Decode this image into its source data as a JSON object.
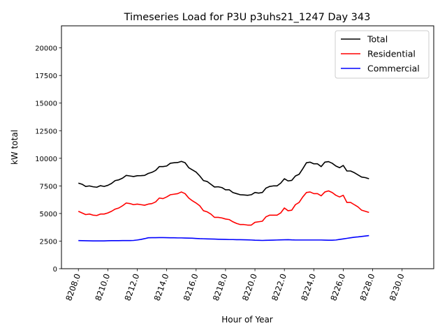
{
  "chart_data": {
    "type": "line",
    "title": "Timeseries Load for P3U p3uhs21_1247  Day 343",
    "xlabel": "Hour of Year",
    "ylabel": "kW total",
    "xlim": [
      8206.85,
      8232.15
    ],
    "ylim": [
      0,
      22000
    ],
    "xticks": [
      8208,
      8210,
      8212,
      8214,
      8216,
      8218,
      8220,
      8222,
      8224,
      8226,
      8228,
      8230
    ],
    "xtick_labels": [
      "8208.0",
      "8210.0",
      "8212.0",
      "8214.0",
      "8216.0",
      "8218.0",
      "8220.0",
      "8222.0",
      "8224.0",
      "8226.0",
      "8228.0",
      "8230.0"
    ],
    "yticks": [
      0,
      2500,
      5000,
      7500,
      10000,
      12500,
      15000,
      17500,
      20000
    ],
    "ytick_labels": [
      "0",
      "2500",
      "5000",
      "7500",
      "10000",
      "12500",
      "15000",
      "17500",
      "20000"
    ],
    "grid": false,
    "legend_position": "top-right",
    "x_start": 8208,
    "x_step": 0.25,
    "series": [
      {
        "name": "Total",
        "color": "#000000",
        "values": [
          7750,
          7650,
          7450,
          7500,
          7420,
          7380,
          7520,
          7450,
          7550,
          7720,
          7980,
          8050,
          8200,
          8450,
          8400,
          8350,
          8420,
          8430,
          8450,
          8630,
          8730,
          8900,
          9250,
          9250,
          9300,
          9550,
          9600,
          9620,
          9720,
          9600,
          9150,
          8950,
          8750,
          8400,
          7980,
          7900,
          7650,
          7400,
          7420,
          7350,
          7150,
          7150,
          6900,
          6800,
          6700,
          6680,
          6650,
          6700,
          6900,
          6850,
          6900,
          7300,
          7450,
          7500,
          7500,
          7750,
          8150,
          7950,
          8000,
          8400,
          8550,
          9050,
          9600,
          9650,
          9500,
          9500,
          9250,
          9650,
          9700,
          9550,
          9300,
          9150,
          9350,
          8850,
          8850,
          8700,
          8500,
          8300,
          8250,
          8150
        ]
      },
      {
        "name": "Residential",
        "color": "#ff0000",
        "values": [
          5200,
          5050,
          4900,
          4950,
          4850,
          4820,
          4950,
          4950,
          5050,
          5200,
          5400,
          5500,
          5700,
          5950,
          5900,
          5800,
          5850,
          5800,
          5750,
          5850,
          5900,
          6050,
          6400,
          6350,
          6500,
          6700,
          6750,
          6800,
          6950,
          6800,
          6400,
          6150,
          5950,
          5700,
          5250,
          5150,
          4950,
          4650,
          4650,
          4600,
          4500,
          4450,
          4250,
          4100,
          4000,
          4000,
          3950,
          3950,
          4200,
          4250,
          4300,
          4700,
          4850,
          4850,
          4850,
          5050,
          5500,
          5250,
          5300,
          5800,
          6000,
          6500,
          6900,
          6950,
          6800,
          6800,
          6600,
          6950,
          7050,
          6900,
          6650,
          6500,
          6650,
          6000,
          6000,
          5800,
          5600,
          5300,
          5200,
          5100
        ]
      },
      {
        "name": "Commercial",
        "color": "#0000ff",
        "values": [
          2550,
          2540,
          2530,
          2525,
          2520,
          2520,
          2520,
          2520,
          2530,
          2540,
          2540,
          2540,
          2550,
          2550,
          2550,
          2560,
          2600,
          2650,
          2720,
          2800,
          2810,
          2810,
          2820,
          2820,
          2810,
          2800,
          2800,
          2790,
          2790,
          2780,
          2770,
          2760,
          2740,
          2720,
          2710,
          2700,
          2690,
          2680,
          2670,
          2660,
          2650,
          2640,
          2640,
          2630,
          2630,
          2620,
          2610,
          2600,
          2580,
          2570,
          2560,
          2570,
          2580,
          2590,
          2600,
          2610,
          2620,
          2630,
          2610,
          2600,
          2600,
          2600,
          2600,
          2600,
          2600,
          2600,
          2600,
          2590,
          2580,
          2580,
          2600,
          2650,
          2700,
          2750,
          2800,
          2850,
          2880,
          2920,
          2960,
          3000
        ]
      }
    ]
  }
}
